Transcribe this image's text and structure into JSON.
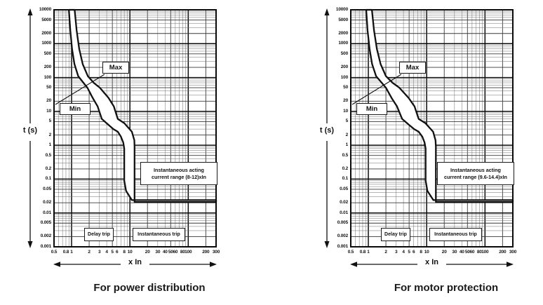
{
  "page": {
    "background": "#ffffff",
    "grid_color_major": "#0a0a0a",
    "grid_color_minor": "#6e6e6e",
    "curve_color": "#111111",
    "band_fill": "#ffffff"
  },
  "chart_data": [
    {
      "type": "line",
      "title": "For power distribution",
      "xlabel": "x In",
      "ylabel": "t (s)",
      "x_scale": "log",
      "y_scale": "log",
      "xlim": [
        0.5,
        300
      ],
      "ylim": [
        0.001,
        10000
      ],
      "grid": "on",
      "x_ticks": [
        "0.5",
        "0.8",
        "1",
        "2",
        "3",
        "4",
        "5",
        "6",
        "8",
        "10",
        "20",
        "30",
        "40",
        "50",
        "60",
        "80",
        "100",
        "200",
        "300"
      ],
      "y_ticks": [
        "10000",
        "5000",
        "2000",
        "1000",
        "500",
        "200",
        "100",
        "50",
        "20",
        "10",
        "5",
        "2",
        "1",
        "0.5",
        "0.2",
        "0.1",
        "0.05",
        "0.02",
        "0.01",
        "0.005",
        "0.002",
        "0.001"
      ],
      "curve_labels": {
        "max": "Max",
        "min": "Min"
      },
      "region_labels": {
        "delay": "Delay trip",
        "instantaneous": "Instantaneous trip"
      },
      "annotation": {
        "line1": "Instantaneous acting",
        "line2": "current range (8-12)xIn"
      },
      "instantaneous_pickup_range_xIn": [
        8,
        12
      ],
      "instantaneous_trip_time_s": 0.02,
      "band": {
        "min": [
          [
            0.9,
            10000
          ],
          [
            0.95,
            2500
          ],
          [
            1.02,
            700
          ],
          [
            1.12,
            250
          ],
          [
            1.3,
            110
          ],
          [
            1.6,
            70
          ],
          [
            1.87,
            50
          ],
          [
            2.3,
            25
          ],
          [
            2.8,
            14
          ],
          [
            3.3,
            6
          ],
          [
            4.3,
            4
          ],
          [
            5.2,
            3
          ],
          [
            6.2,
            2.5
          ],
          [
            7.0,
            1.8
          ],
          [
            7.7,
            1.2
          ],
          [
            8,
            0.8
          ],
          [
            8,
            0.09
          ],
          [
            8.6,
            0.045
          ],
          [
            10.8,
            0.024
          ]
        ],
        "max": [
          [
            1.13,
            10000
          ],
          [
            1.22,
            2500
          ],
          [
            1.35,
            700
          ],
          [
            1.55,
            250
          ],
          [
            1.9,
            110
          ],
          [
            2.4,
            70
          ],
          [
            3.05,
            50
          ],
          [
            4.3,
            25
          ],
          [
            5.3,
            14
          ],
          [
            6.2,
            6
          ],
          [
            8.0,
            4.5
          ],
          [
            10.8,
            2.5
          ],
          [
            11.9,
            1.4
          ],
          [
            12,
            0.9
          ]
        ],
        "bottom_t_top": 0.024,
        "bottom_t_low": 0.021,
        "x_end": 300
      }
    },
    {
      "type": "line",
      "title": "For motor protection",
      "xlabel": "x In",
      "ylabel": "t (s)",
      "x_scale": "log",
      "y_scale": "log",
      "xlim": [
        0.5,
        300
      ],
      "ylim": [
        0.001,
        10000
      ],
      "grid": "on",
      "x_ticks": [
        "0.5",
        "0.8",
        "1",
        "2",
        "3",
        "4",
        "5",
        "6",
        "8",
        "10",
        "20",
        "30",
        "40",
        "50",
        "60",
        "80",
        "100",
        "200",
        "300"
      ],
      "y_ticks": [
        "10000",
        "5000",
        "2000",
        "1000",
        "500",
        "200",
        "100",
        "50",
        "20",
        "10",
        "5",
        "2",
        "1",
        "0.5",
        "0.2",
        "0.1",
        "0.05",
        "0.02",
        "0.01",
        "0.005",
        "0.002",
        "0.001"
      ],
      "curve_labels": {
        "max": "Max",
        "min": "Min"
      },
      "region_labels": {
        "delay": "Delay trip",
        "instantaneous": "Instantaneous trip"
      },
      "annotation": {
        "line1": "Instantaneous acting",
        "line2": "current range (9.6-14.4)xIn"
      },
      "instantaneous_pickup_range_xIn": [
        9.6,
        14.4
      ],
      "instantaneous_trip_time_s": 0.02,
      "band": {
        "min": [
          [
            0.92,
            10000
          ],
          [
            0.97,
            2500
          ],
          [
            1.05,
            700
          ],
          [
            1.16,
            250
          ],
          [
            1.36,
            110
          ],
          [
            1.7,
            70
          ],
          [
            2.0,
            50
          ],
          [
            2.5,
            25
          ],
          [
            3.1,
            14
          ],
          [
            3.8,
            6
          ],
          [
            5.0,
            4
          ],
          [
            6.1,
            3
          ],
          [
            7.3,
            2.5
          ],
          [
            8.4,
            1.8
          ],
          [
            9.2,
            1.2
          ],
          [
            9.6,
            0.8
          ],
          [
            9.6,
            0.09
          ],
          [
            10.3,
            0.045
          ],
          [
            13,
            0.024
          ]
        ],
        "max": [
          [
            1.15,
            10000
          ],
          [
            1.25,
            2500
          ],
          [
            1.4,
            700
          ],
          [
            1.62,
            250
          ],
          [
            2.0,
            110
          ],
          [
            2.6,
            70
          ],
          [
            3.4,
            50
          ],
          [
            4.9,
            25
          ],
          [
            6.2,
            14
          ],
          [
            7.3,
            6
          ],
          [
            9.5,
            4.5
          ],
          [
            12.9,
            2.5
          ],
          [
            14.2,
            1.4
          ],
          [
            14.4,
            0.9
          ]
        ],
        "bottom_t_top": 0.024,
        "bottom_t_low": 0.021,
        "x_end": 300
      }
    }
  ]
}
